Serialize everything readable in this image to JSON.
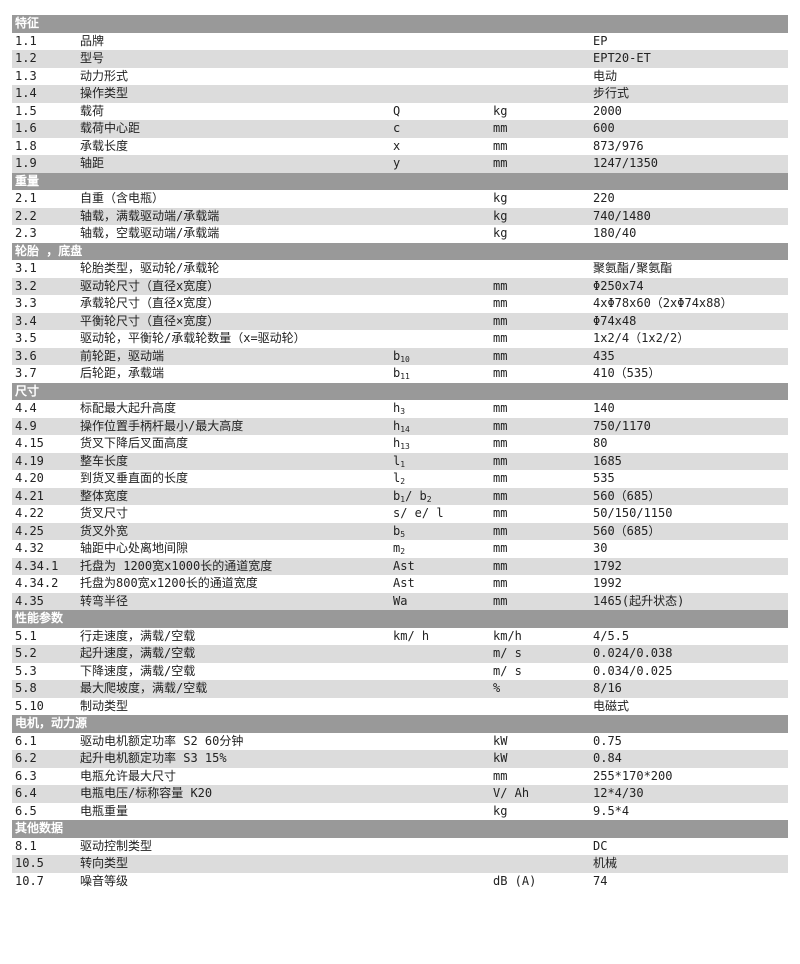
{
  "sections": [
    {
      "title": "特征",
      "rows": [
        {
          "num": "1.1",
          "name": "品牌",
          "symbol": [],
          "unit": "",
          "value": "EP"
        },
        {
          "num": "1.2",
          "name": "型号",
          "symbol": [],
          "unit": "",
          "value": "EPT20-ET"
        },
        {
          "num": "1.3",
          "name": "动力形式",
          "symbol": [],
          "unit": "",
          "value": "电动"
        },
        {
          "num": "1.4",
          "name": "操作类型",
          "symbol": [],
          "unit": "",
          "value": "步行式"
        },
        {
          "num": "1.5",
          "name": "载荷",
          "symbol": [
            [
              "Q",
              ""
            ]
          ],
          "unit": "kg",
          "value": "2000"
        },
        {
          "num": "1.6",
          "name": "载荷中心距",
          "symbol": [
            [
              "c",
              ""
            ]
          ],
          "unit": "mm",
          "value": "600"
        },
        {
          "num": "1.8",
          "name": "承载长度",
          "symbol": [
            [
              "x",
              ""
            ]
          ],
          "unit": "mm",
          "value": "873/976"
        },
        {
          "num": "1.9",
          "name": "轴距",
          "symbol": [
            [
              "y",
              ""
            ]
          ],
          "unit": "mm",
          "value": "1247/1350"
        }
      ]
    },
    {
      "title": "重量",
      "rows": [
        {
          "num": "2.1",
          "name": "自重（含电瓶）",
          "symbol": [],
          "unit": "kg",
          "value": "220"
        },
        {
          "num": "2.2",
          "name": "轴载，满载驱动端/承载端",
          "symbol": [],
          "unit": "kg",
          "value": "740/1480"
        },
        {
          "num": "2.3",
          "name": "轴载，空载驱动端/承载端",
          "symbol": [],
          "unit": "kg",
          "value": "180/40"
        }
      ]
    },
    {
      "title": "轮胎 ，底盘",
      "rows": [
        {
          "num": "3.1",
          "name": "轮胎类型，驱动轮/承载轮",
          "symbol": [],
          "unit": "",
          "value": "聚氨酯/聚氨酯"
        },
        {
          "num": "3.2",
          "name": "驱动轮尺寸（直径x宽度）",
          "symbol": [],
          "unit": "mm",
          "value": "Φ250x74"
        },
        {
          "num": "3.3",
          "name": "承载轮尺寸（直径x宽度）",
          "symbol": [],
          "unit": "mm",
          "value": "4xΦ78x60（2xΦ74x88）"
        },
        {
          "num": "3.4",
          "name": "平衡轮尺寸（直径×宽度）",
          "symbol": [],
          "unit": "mm",
          "value": "Φ74x48"
        },
        {
          "num": "3.5",
          "name": "驱动轮，平衡轮/承载轮数量（x=驱动轮）",
          "symbol": [],
          "unit": "mm",
          "value": "1x2/4（1x2/2）"
        },
        {
          "num": "3.6",
          "name": "前轮距，驱动端",
          "symbol": [
            [
              "b",
              "10"
            ]
          ],
          "unit": "mm",
          "value": "435"
        },
        {
          "num": "3.7",
          "name": "后轮距，承载端",
          "symbol": [
            [
              "b",
              "11"
            ]
          ],
          "unit": "mm",
          "value": "410（535）"
        }
      ]
    },
    {
      "title": "尺寸",
      "rows": [
        {
          "num": "4.4",
          "name": "标配最大起升高度",
          "symbol": [
            [
              "h",
              "3"
            ]
          ],
          "unit": "mm",
          "value": "140"
        },
        {
          "num": "4.9",
          "name": "操作位置手柄杆最小/最大高度",
          "symbol": [
            [
              "h",
              "14"
            ]
          ],
          "unit": "mm",
          "value": "750/1170"
        },
        {
          "num": "4.15",
          "name": "货叉下降后叉面高度",
          "symbol": [
            [
              "h",
              "13"
            ]
          ],
          "unit": "mm",
          "value": "80"
        },
        {
          "num": "4.19",
          "name": "整车长度",
          "symbol": [
            [
              "l",
              "1"
            ]
          ],
          "unit": "mm",
          "value": "1685"
        },
        {
          "num": "4.20",
          "name": "到货叉垂直面的长度",
          "symbol": [
            [
              "l",
              "2"
            ]
          ],
          "unit": "mm",
          "value": "535"
        },
        {
          "num": "4.21",
          "name": "整体宽度",
          "symbol": [
            [
              "b",
              "1"
            ],
            [
              "/ b",
              "2"
            ]
          ],
          "unit": "mm",
          "value": "560（685）"
        },
        {
          "num": "4.22",
          "name": "货叉尺寸",
          "symbol": [
            [
              "s/ e/ l",
              ""
            ]
          ],
          "unit": "mm",
          "value": "50/150/1150"
        },
        {
          "num": "4.25",
          "name": "货叉外宽",
          "symbol": [
            [
              "b",
              "5"
            ]
          ],
          "unit": "mm",
          "value": "560（685）"
        },
        {
          "num": "4.32",
          "name": "轴距中心处离地间隙",
          "symbol": [
            [
              "m",
              "2"
            ]
          ],
          "unit": "mm",
          "value": "30"
        },
        {
          "num": "4.34.1",
          "name": "托盘为 1200宽x1000长的通道宽度",
          "symbol": [
            [
              "Ast",
              ""
            ]
          ],
          "unit": "mm",
          "value": "1792"
        },
        {
          "num": "4.34.2",
          "name": "托盘为800宽x1200长的通道宽度",
          "symbol": [
            [
              "Ast",
              ""
            ]
          ],
          "unit": "mm",
          "value": "1992"
        },
        {
          "num": "4.35",
          "name": "转弯半径",
          "symbol": [
            [
              "Wa",
              ""
            ]
          ],
          "unit": "mm",
          "value": "1465(起升状态)"
        }
      ]
    },
    {
      "title": "性能参数",
      "rows": [
        {
          "num": "5.1",
          "name": "行走速度，满载/空载",
          "symbol": [
            [
              "km/ h",
              ""
            ]
          ],
          "unit": "km/h",
          "value": "4/5.5"
        },
        {
          "num": "5.2",
          "name": "起升速度，满载/空载",
          "symbol": [],
          "unit": "m/ s",
          "value": "0.024/0.038"
        },
        {
          "num": "5.3",
          "name": "下降速度，满载/空载",
          "symbol": [],
          "unit": "m/ s",
          "value": "0.034/0.025"
        },
        {
          "num": "5.8",
          "name": "最大爬坡度，满载/空载",
          "symbol": [],
          "unit": "%",
          "value": "8/16"
        },
        {
          "num": "5.10",
          "name": "制动类型",
          "symbol": [],
          "unit": "",
          "value": "电磁式"
        }
      ]
    },
    {
      "title": "电机，动力源",
      "rows": [
        {
          "num": "6.1",
          "name": "驱动电机额定功率 S2 60分钟",
          "symbol": [],
          "unit": "kW",
          "value": "0.75"
        },
        {
          "num": "6.2",
          "name": "起升电机额定功率 S3 15%",
          "symbol": [],
          "unit": "kW",
          "value": "0.84"
        },
        {
          "num": "6.3",
          "name": "电瓶允许最大尺寸",
          "symbol": [],
          "unit": "mm",
          "value": "255*170*200"
        },
        {
          "num": "6.4",
          "name": "电瓶电压/标称容量 K20",
          "symbol": [],
          "unit": "V/ Ah",
          "value": "12*4/30"
        },
        {
          "num": "6.5",
          "name": "电瓶重量",
          "symbol": [],
          "unit": "kg",
          "value": "9.5*4"
        }
      ]
    },
    {
      "title": "其他数据",
      "rows": [
        {
          "num": "8.1",
          "name": "驱动控制类型",
          "symbol": [],
          "unit": "",
          "value": "DC"
        },
        {
          "num": "10.5",
          "name": "转向类型",
          "symbol": [],
          "unit": "",
          "value": "机械"
        },
        {
          "num": "10.7",
          "name": "噪音等级",
          "symbol": [],
          "unit": "dB (A)",
          "value": "74"
        }
      ]
    }
  ]
}
